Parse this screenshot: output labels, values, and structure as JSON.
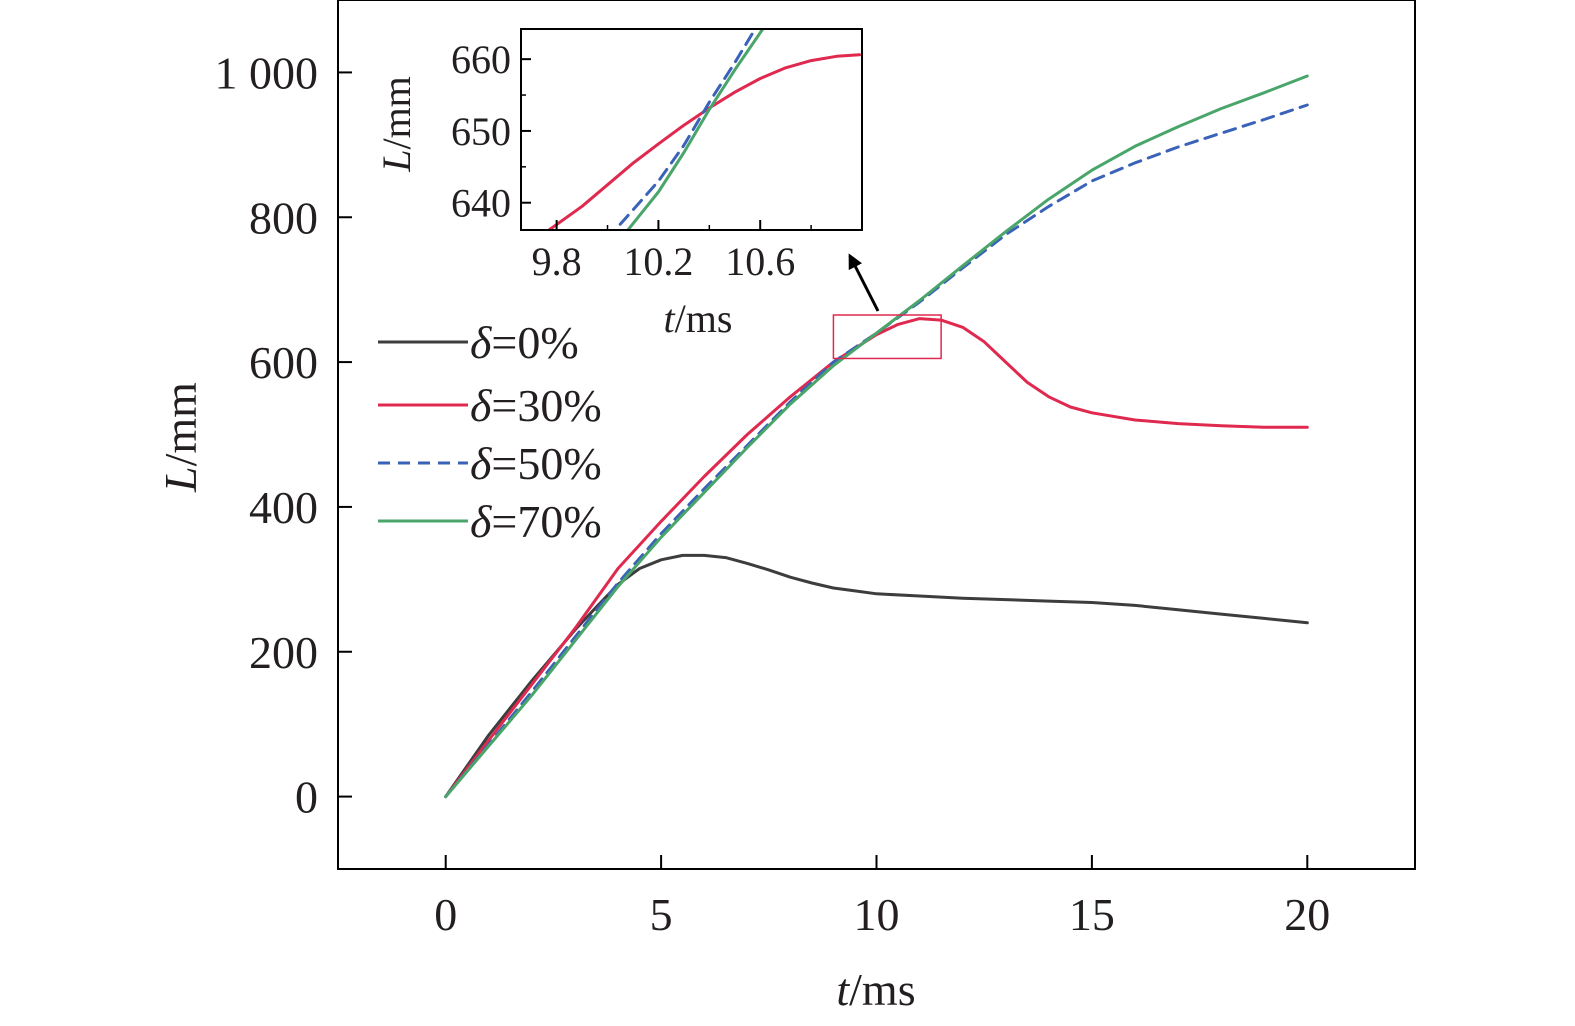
{
  "chart_data": [
    {
      "type": "line",
      "xlabel_var": "t",
      "xlabel_unit": "/ms",
      "ylabel_var": "L",
      "ylabel_unit": "/mm",
      "xlim": [
        -2.5,
        22.5
      ],
      "ylim": [
        -100,
        1100
      ],
      "xticks": [
        0,
        5,
        10,
        15,
        20
      ],
      "xtick_labels": [
        "0",
        "5",
        "10",
        "15",
        "20"
      ],
      "yticks": [
        0,
        200,
        400,
        600,
        800,
        1000
      ],
      "ytick_labels": [
        "0",
        "200",
        "400",
        "600",
        "800",
        "1 000"
      ],
      "grid": false,
      "legend_position": "left",
      "highlight_box": {
        "x": [
          9.0,
          11.5
        ],
        "y": [
          605,
          665
        ]
      },
      "series": [
        {
          "name_var": "δ",
          "name_text": "=0%",
          "color": "#3d3d3d",
          "dash": "solid",
          "x": [
            0,
            1,
            2,
            3,
            3.5,
            4,
            4.5,
            5,
            5.5,
            6,
            6.5,
            7,
            7.5,
            8,
            8.5,
            9,
            9.5,
            10,
            11,
            12,
            13,
            14,
            15,
            16,
            17,
            18,
            19,
            20
          ],
          "y": [
            0,
            85,
            160,
            230,
            262,
            293,
            315,
            327,
            333,
            333,
            330,
            322,
            313,
            303,
            295,
            288,
            284,
            280,
            277,
            274,
            272,
            270,
            268,
            264,
            258,
            252,
            246,
            240
          ]
        },
        {
          "name_var": "δ",
          "name_text": "=30%",
          "color": "#e0294e",
          "dash": "solid",
          "x": [
            0,
            1,
            2,
            3,
            4,
            5,
            6,
            7,
            8,
            9,
            10,
            10.5,
            11,
            11.5,
            12,
            12.5,
            13,
            13.5,
            14,
            14.5,
            15,
            16,
            17,
            18,
            19,
            20
          ],
          "y": [
            0,
            78,
            155,
            232,
            315,
            380,
            442,
            500,
            552,
            600,
            638,
            652,
            660,
            658,
            648,
            628,
            600,
            572,
            552,
            538,
            530,
            520,
            515,
            512,
            510,
            510
          ]
        },
        {
          "name_var": "δ",
          "name_text": "=50%",
          "color": "#3a62b8",
          "dash": "dashed",
          "x": [
            0,
            1,
            2,
            3,
            4,
            5,
            6,
            7,
            8,
            9,
            10,
            11,
            12,
            13,
            14,
            15,
            16,
            17,
            18,
            19,
            20
          ],
          "y": [
            0,
            72,
            145,
            220,
            295,
            363,
            425,
            485,
            545,
            600,
            640,
            683,
            730,
            776,
            815,
            850,
            875,
            897,
            916,
            935,
            955
          ]
        },
        {
          "name_var": "δ",
          "name_text": "=70%",
          "color": "#4aa56a",
          "dash": "solid",
          "x": [
            0,
            1,
            2,
            3,
            4,
            5,
            6,
            7,
            8,
            9,
            10,
            11,
            12,
            13,
            14,
            15,
            16,
            17,
            18,
            19,
            20
          ],
          "y": [
            0,
            70,
            140,
            215,
            290,
            358,
            420,
            482,
            542,
            595,
            640,
            685,
            733,
            780,
            825,
            865,
            898,
            925,
            950,
            972,
            995
          ]
        }
      ]
    },
    {
      "type": "line",
      "role": "inset",
      "xlabel_var": "t",
      "xlabel_unit": "/ms",
      "ylabel_var": "L",
      "ylabel_unit": "/mm",
      "xlim": [
        9.66,
        11.0
      ],
      "ylim": [
        636.2,
        664.2
      ],
      "xticks": [
        9.8,
        10.2,
        10.6
      ],
      "xtick_labels": [
        "9.8",
        "10.2",
        "10.6"
      ],
      "xminor": [
        10.0,
        10.4,
        10.8
      ],
      "yticks": [
        640,
        650,
        660
      ],
      "ytick_labels": [
        "640",
        "650",
        "660"
      ],
      "yminor": [
        645,
        655
      ],
      "series": [
        {
          "name_var": "δ",
          "name_text": "=30%",
          "color": "#e0294e",
          "dash": "solid",
          "x": [
            9.77,
            9.9,
            10.0,
            10.1,
            10.2,
            10.3,
            10.4,
            10.5,
            10.6,
            10.7,
            10.8,
            10.9,
            10.99
          ],
          "y": [
            636.2,
            639.5,
            642.5,
            645.5,
            648.2,
            650.8,
            653.2,
            655.4,
            657.3,
            658.8,
            659.8,
            660.4,
            660.6
          ]
        },
        {
          "name_var": "δ",
          "name_text": "=50%",
          "color": "#3a62b8",
          "dash": "dashed",
          "x": [
            10.05,
            10.2,
            10.3,
            10.4,
            10.5,
            10.58
          ],
          "y": [
            637.0,
            643.0,
            648.0,
            654.0,
            659.5,
            664.2
          ]
        },
        {
          "name_var": "δ",
          "name_text": "=70%",
          "color": "#4aa56a",
          "dash": "solid",
          "x": [
            10.08,
            10.2,
            10.3,
            10.4,
            10.5,
            10.61
          ],
          "y": [
            636.2,
            641.5,
            647.0,
            653.0,
            658.5,
            664.2
          ]
        }
      ]
    }
  ]
}
